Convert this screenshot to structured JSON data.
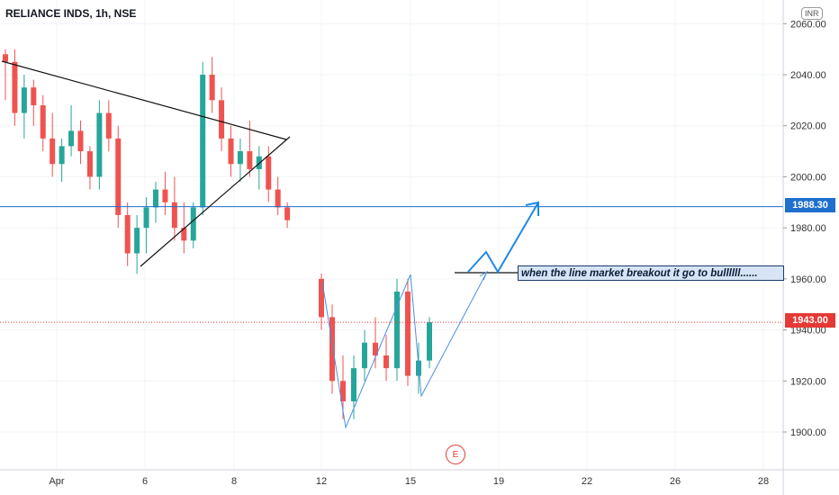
{
  "header": {
    "symbol_title": "RELIANCE INDS, 1h, NSE",
    "currency": "INR"
  },
  "price_tags": {
    "horizontal_line": "1988.30",
    "last_price": "1943.00"
  },
  "annotation": {
    "text": "when the line market  breakout it go to bullllll......"
  },
  "earnings_marker": {
    "label": "E"
  },
  "colors": {
    "up": "#26a69a",
    "down": "#ef5350",
    "line_blue": "#1e6fce",
    "last_price": "#e53935",
    "grid": "#f0f3fa"
  },
  "chart_data": {
    "type": "candlestick",
    "title": "RELIANCE INDS, 1h, NSE",
    "y_axis": {
      "ticks": [
        "2060.00",
        "2040.00",
        "2020.00",
        "2000.00",
        "1980.00",
        "1960.00",
        "1940.00",
        "1920.00",
        "1900.00"
      ],
      "ylim": [
        1885,
        2065
      ],
      "position": "right"
    },
    "x_axis": {
      "ticks": [
        "Apr",
        "6",
        "8",
        "12",
        "15",
        "19",
        "22",
        "26",
        "28"
      ]
    },
    "horizontal_line": 1988.3,
    "last_price": 1943.0,
    "candles": [
      [
        2048,
        2050,
        2030,
        2045
      ],
      [
        2045,
        2050,
        2020,
        2025
      ],
      [
        2025,
        2040,
        2015,
        2035
      ],
      [
        2035,
        2038,
        2020,
        2028
      ],
      [
        2028,
        2032,
        2010,
        2015
      ],
      [
        2015,
        2025,
        2000,
        2005
      ],
      [
        2005,
        2015,
        1998,
        2012
      ],
      [
        2012,
        2028,
        2008,
        2018
      ],
      [
        2018,
        2022,
        2005,
        2010
      ],
      [
        2010,
        2012,
        1995,
        2000
      ],
      [
        2000,
        2030,
        1995,
        2025
      ],
      [
        2025,
        2030,
        2010,
        2015
      ],
      [
        2015,
        2020,
        1980,
        1985
      ],
      [
        1985,
        1990,
        1965,
        1970
      ],
      [
        1970,
        1985,
        1962,
        1980
      ],
      [
        1980,
        1992,
        1970,
        1988
      ],
      [
        1988,
        1998,
        1982,
        1995
      ],
      [
        1995,
        2002,
        1985,
        1990
      ],
      [
        1990,
        2000,
        1975,
        1980
      ],
      [
        1980,
        1990,
        1970,
        1975
      ],
      [
        1975,
        1990,
        1972,
        1988
      ],
      [
        1988,
        2045,
        1985,
        2040
      ],
      [
        2040,
        2047,
        2025,
        2030
      ],
      [
        2030,
        2035,
        2010,
        2015
      ],
      [
        2015,
        2020,
        2000,
        2005
      ],
      [
        2005,
        2015,
        1998,
        2010
      ],
      [
        2010,
        2022,
        2000,
        2003
      ],
      [
        2003,
        2012,
        1995,
        2008
      ],
      [
        2008,
        2012,
        1990,
        1995
      ],
      [
        1995,
        2000,
        1985,
        1988
      ],
      [
        1988,
        1990,
        1980,
        1983
      ],
      [
        1960,
        1962,
        1940,
        1945
      ],
      [
        1945,
        1950,
        1915,
        1920
      ],
      [
        1920,
        1930,
        1905,
        1912
      ],
      [
        1912,
        1930,
        1905,
        1925
      ],
      [
        1925,
        1940,
        1920,
        1935
      ],
      [
        1935,
        1945,
        1925,
        1930
      ],
      [
        1930,
        1938,
        1920,
        1925
      ],
      [
        1925,
        1960,
        1920,
        1955
      ],
      [
        1955,
        1960,
        1918,
        1922
      ],
      [
        1922,
        1935,
        1915,
        1928
      ],
      [
        1928,
        1945,
        1925,
        1943
      ]
    ],
    "trendlines": [
      {
        "name": "descending resistance",
        "from": [
          0,
          2043
        ],
        "to": [
          32,
          2014
        ]
      },
      {
        "name": "ascending support",
        "from": [
          14,
          1962
        ],
        "to": [
          32,
          2014
        ]
      }
    ],
    "projection_points": [
      [
        1960,
        1960
      ],
      [
        1970,
        1960
      ],
      [
        1960,
        1960
      ],
      [
        1990,
        1990
      ]
    ]
  }
}
